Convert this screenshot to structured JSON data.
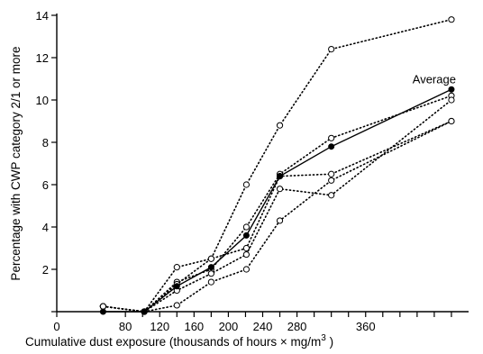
{
  "chart_data": {
    "type": "line",
    "xlabel": "Cumulative dust exposure (thousands of hours × mg/m",
    "xlabel_sup": "3",
    "xlabel_close": " )",
    "ylabel": "Percentage with CWP category 2/1 or more",
    "xlim": [
      0,
      480
    ],
    "ylim": [
      0,
      14
    ],
    "x_ticks": [
      0,
      80,
      100,
      120,
      140,
      160,
      180,
      200,
      220,
      240,
      260,
      280,
      300,
      320,
      340,
      360,
      380,
      400,
      420,
      440,
      460
    ],
    "x_tick_labels": [
      {
        "value": 0,
        "label": "0"
      },
      {
        "value": 80,
        "label": "80"
      },
      {
        "value": 120,
        "label": "120"
      },
      {
        "value": 160,
        "label": "160"
      },
      {
        "value": 200,
        "label": "200"
      },
      {
        "value": 240,
        "label": "240"
      },
      {
        "value": 280,
        "label": "280"
      },
      {
        "value": 360,
        "label": "360"
      }
    ],
    "y_ticks": [
      0,
      2,
      4,
      6,
      8,
      10,
      12,
      14
    ],
    "y_tick_labels": [
      {
        "value": 2,
        "label": "2"
      },
      {
        "value": 4,
        "label": "4"
      },
      {
        "value": 6,
        "label": "6"
      },
      {
        "value": 8,
        "label": "8"
      },
      {
        "value": 10,
        "label": "10"
      },
      {
        "value": 12,
        "label": "12"
      },
      {
        "value": 14,
        "label": "14"
      }
    ],
    "grid": false,
    "series": [
      {
        "name": "Average",
        "style": "solid",
        "marker": "filled-circle",
        "x": [
          54,
          102,
          140,
          180,
          221,
          260,
          320,
          460
        ],
        "y": [
          0,
          0,
          1.2,
          2.1,
          3.6,
          6.4,
          7.8,
          10.5
        ]
      },
      {
        "name": "",
        "style": "dotted",
        "marker": "open-circle",
        "x": [
          54,
          102,
          140,
          180,
          221,
          260,
          320,
          460
        ],
        "y": [
          0.25,
          0,
          2.1,
          2.5,
          6.0,
          8.8,
          12.4,
          13.8
        ]
      },
      {
        "name": "",
        "style": "dotted",
        "marker": "open-circle",
        "x": [
          54,
          102,
          140,
          180,
          221,
          260,
          320,
          460
        ],
        "y": [
          0.25,
          0,
          1.4,
          2.0,
          4.0,
          6.5,
          8.2,
          10.2
        ]
      },
      {
        "name": "",
        "style": "dotted",
        "marker": "open-circle",
        "x": [
          54,
          102,
          140,
          180,
          221,
          260,
          320,
          460
        ],
        "y": [
          0.25,
          0,
          1.3,
          2.5,
          3.0,
          6.4,
          6.5,
          9.0
        ]
      },
      {
        "name": "",
        "style": "dotted",
        "marker": "open-circle",
        "x": [
          54,
          102,
          140,
          180,
          221,
          260,
          320,
          460
        ],
        "y": [
          0.25,
          0,
          1.0,
          1.8,
          2.7,
          5.8,
          5.5,
          10.0
        ]
      },
      {
        "name": "",
        "style": "dotted",
        "marker": "open-circle",
        "x": [
          54,
          102,
          140,
          180,
          221,
          260,
          320,
          460
        ],
        "y": [
          0.25,
          0,
          0.3,
          1.4,
          2.0,
          4.3,
          6.2,
          9.0
        ]
      }
    ],
    "annotations": [
      {
        "text": "Average",
        "series": "Average"
      }
    ]
  }
}
